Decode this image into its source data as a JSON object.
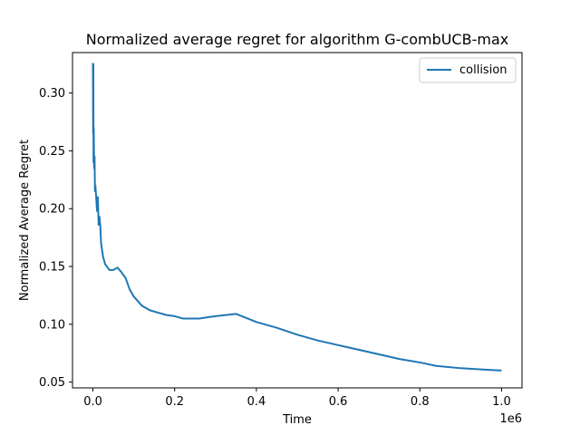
{
  "chart_data": {
    "type": "line",
    "title": "Normalized average regret for algorithm G-combUCB-max",
    "xlabel": "Time",
    "ylabel": "Normalized Average Regret",
    "x_offset_label": "1e6",
    "xlim": [
      -50000,
      1050000
    ],
    "ylim": [
      0.045,
      0.335
    ],
    "x_ticks": [
      {
        "value": 0,
        "label": "0.0"
      },
      {
        "value": 200000,
        "label": "0.2"
      },
      {
        "value": 400000,
        "label": "0.4"
      },
      {
        "value": 600000,
        "label": "0.6"
      },
      {
        "value": 800000,
        "label": "0.8"
      },
      {
        "value": 1000000,
        "label": "1.0"
      }
    ],
    "y_ticks": [
      {
        "value": 0.05,
        "label": "0.05"
      },
      {
        "value": 0.1,
        "label": "0.10"
      },
      {
        "value": 0.15,
        "label": "0.15"
      },
      {
        "value": 0.2,
        "label": "0.20"
      },
      {
        "value": 0.25,
        "label": "0.25"
      },
      {
        "value": 0.3,
        "label": "0.30"
      }
    ],
    "grid": false,
    "legend_position": "top-right",
    "series": [
      {
        "name": "collision",
        "color": "#1f77b4",
        "x": [
          0,
          500,
          1000,
          1500,
          2000,
          3000,
          4000,
          5000,
          6000,
          8000,
          10000,
          12000,
          14000,
          16000,
          18000,
          20000,
          25000,
          30000,
          40000,
          50000,
          60000,
          70000,
          80000,
          90000,
          100000,
          120000,
          140000,
          160000,
          180000,
          200000,
          220000,
          240000,
          260000,
          280000,
          300000,
          350000,
          400000,
          450000,
          500000,
          550000,
          600000,
          650000,
          700000,
          750000,
          800000,
          840000,
          900000,
          950000,
          1000000
        ],
        "y": [
          0.326,
          0.265,
          0.325,
          0.24,
          0.27,
          0.235,
          0.245,
          0.215,
          0.22,
          0.21,
          0.198,
          0.21,
          0.186,
          0.193,
          0.185,
          0.17,
          0.158,
          0.152,
          0.147,
          0.147,
          0.149,
          0.145,
          0.14,
          0.13,
          0.124,
          0.116,
          0.112,
          0.11,
          0.108,
          0.107,
          0.105,
          0.105,
          0.105,
          0.106,
          0.107,
          0.109,
          0.102,
          0.097,
          0.091,
          0.086,
          0.082,
          0.078,
          0.074,
          0.07,
          0.067,
          0.064,
          0.062,
          0.061,
          0.06
        ]
      }
    ]
  }
}
